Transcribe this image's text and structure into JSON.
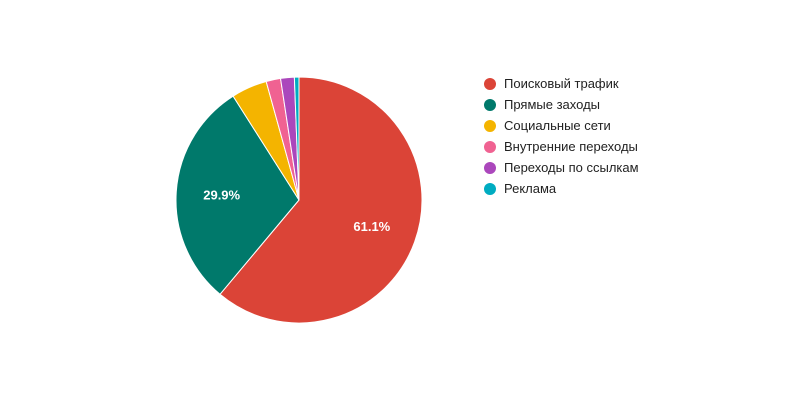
{
  "chart_data": {
    "type": "pie",
    "title": "",
    "legend_position": "right",
    "slices": [
      {
        "name": "Поисковый трафик",
        "value": 61.1,
        "label": "61.1%",
        "color": "#db4437"
      },
      {
        "name": "Прямые заходы",
        "value": 29.9,
        "label": "29.9%",
        "color": "#00796b"
      },
      {
        "name": "Социальные сети",
        "value": 4.7,
        "label": "",
        "color": "#f4b400"
      },
      {
        "name": "Внутренние переходы",
        "value": 1.9,
        "label": "",
        "color": "#f06292"
      },
      {
        "name": "Переходы по ссылкам",
        "value": 1.8,
        "label": "",
        "color": "#ab47bc"
      },
      {
        "name": "Реклама",
        "value": 0.6,
        "label": "",
        "color": "#00acc1"
      }
    ]
  }
}
